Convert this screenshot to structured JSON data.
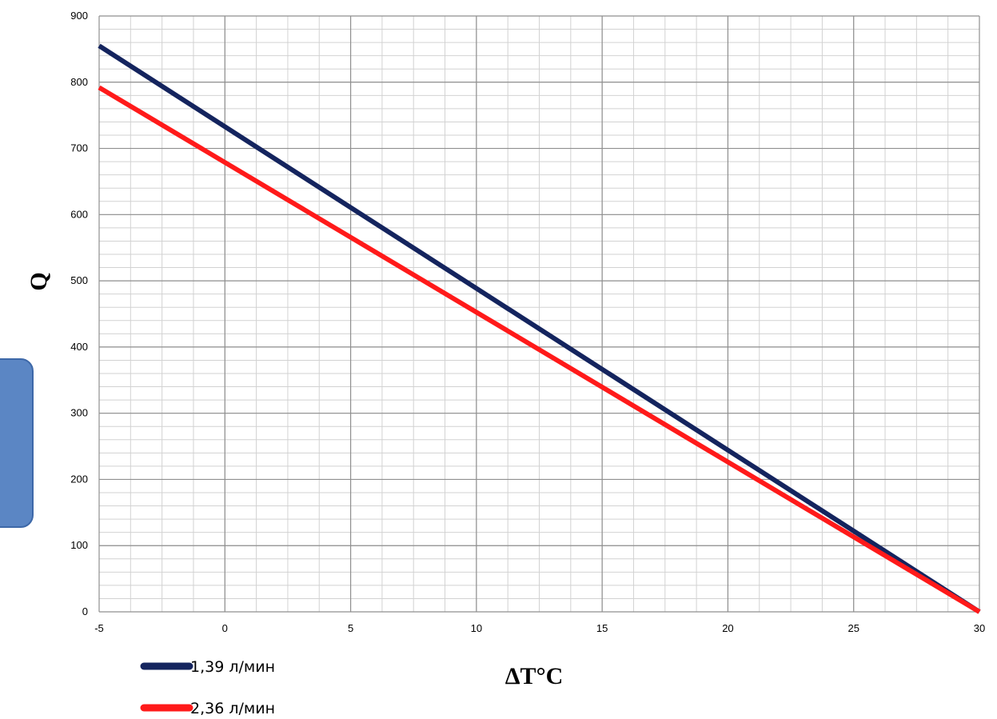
{
  "chart_data": {
    "type": "line",
    "title": "",
    "xlabel": "ΔT°C",
    "ylabel": "Q",
    "xlim": [
      -5,
      30
    ],
    "ylim": [
      0,
      900
    ],
    "x_ticks": [
      -5,
      0,
      5,
      10,
      15,
      20,
      25,
      30
    ],
    "y_ticks": [
      0,
      100,
      200,
      300,
      400,
      500,
      600,
      700,
      800,
      900
    ],
    "x_minor_step": 1.25,
    "y_minor_step": 20,
    "grid": true,
    "legend_position": "bottom-left",
    "series": [
      {
        "name": "1,39 л/мин",
        "color": "#14245e",
        "x": [
          -5,
          30
        ],
        "y": [
          855,
          0
        ]
      },
      {
        "name": "2,36 л/мин",
        "color": "#ff1a1a",
        "x": [
          -5,
          30
        ],
        "y": [
          792,
          0
        ]
      }
    ]
  }
}
